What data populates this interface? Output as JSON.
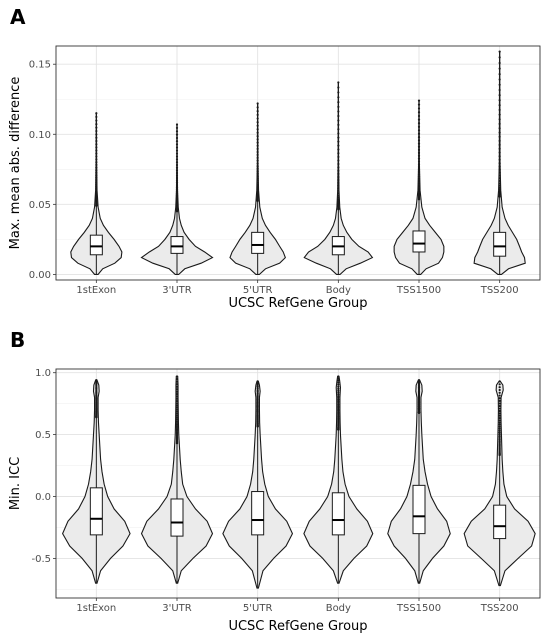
{
  "chart_data": [
    {
      "type": "violin",
      "panel_label": "A",
      "title": "",
      "xlabel": "UCSC RefGene Group",
      "ylabel": "Max. mean abs. difference",
      "categories": [
        "1stExon",
        "3'UTR",
        "5'UTR",
        "Body",
        "TSS1500",
        "TSS200"
      ],
      "yticks": [
        0.0,
        0.05,
        0.1,
        0.15
      ],
      "ytick_labels": [
        "0.00",
        "0.05",
        "0.10",
        "0.15"
      ],
      "ylim": [
        -0.004,
        0.163
      ],
      "grid": true,
      "groups": [
        {
          "category": "1stExon",
          "min": 0.0,
          "q1": 0.014,
          "median": 0.02,
          "q3": 0.028,
          "max": 0.115,
          "violin": [
            [
              0.0,
              0.05
            ],
            [
              0.004,
              0.18
            ],
            [
              0.008,
              0.52
            ],
            [
              0.012,
              0.7
            ],
            [
              0.016,
              0.72
            ],
            [
              0.02,
              0.64
            ],
            [
              0.025,
              0.5
            ],
            [
              0.03,
              0.34
            ],
            [
              0.035,
              0.2
            ],
            [
              0.04,
              0.11
            ],
            [
              0.048,
              0.05
            ],
            [
              0.06,
              0.02
            ],
            [
              0.08,
              0.008
            ],
            [
              0.115,
              0.003
            ]
          ]
        },
        {
          "category": "3'UTR",
          "min": 0.0,
          "q1": 0.015,
          "median": 0.02,
          "q3": 0.027,
          "max": 0.107,
          "violin": [
            [
              0.0,
              0.05
            ],
            [
              0.004,
              0.22
            ],
            [
              0.008,
              0.68
            ],
            [
              0.012,
              1.0
            ],
            [
              0.016,
              0.78
            ],
            [
              0.02,
              0.52
            ],
            [
              0.025,
              0.34
            ],
            [
              0.03,
              0.2
            ],
            [
              0.035,
              0.12
            ],
            [
              0.04,
              0.07
            ],
            [
              0.048,
              0.035
            ],
            [
              0.06,
              0.015
            ],
            [
              0.08,
              0.006
            ],
            [
              0.107,
              0.003
            ]
          ]
        },
        {
          "category": "5'UTR",
          "min": 0.0,
          "q1": 0.015,
          "median": 0.021,
          "q3": 0.03,
          "max": 0.122,
          "violin": [
            [
              0.0,
              0.05
            ],
            [
              0.004,
              0.22
            ],
            [
              0.008,
              0.62
            ],
            [
              0.012,
              0.78
            ],
            [
              0.016,
              0.72
            ],
            [
              0.02,
              0.62
            ],
            [
              0.025,
              0.5
            ],
            [
              0.03,
              0.35
            ],
            [
              0.035,
              0.22
            ],
            [
              0.04,
              0.13
            ],
            [
              0.048,
              0.06
            ],
            [
              0.06,
              0.025
            ],
            [
              0.08,
              0.008
            ],
            [
              0.122,
              0.003
            ]
          ]
        },
        {
          "category": "Body",
          "min": 0.0,
          "q1": 0.014,
          "median": 0.02,
          "q3": 0.027,
          "max": 0.137,
          "violin": [
            [
              0.0,
              0.05
            ],
            [
              0.004,
              0.22
            ],
            [
              0.008,
              0.62
            ],
            [
              0.012,
              0.96
            ],
            [
              0.016,
              0.84
            ],
            [
              0.02,
              0.58
            ],
            [
              0.025,
              0.38
            ],
            [
              0.03,
              0.24
            ],
            [
              0.035,
              0.14
            ],
            [
              0.04,
              0.08
            ],
            [
              0.048,
              0.04
            ],
            [
              0.06,
              0.018
            ],
            [
              0.08,
              0.007
            ],
            [
              0.137,
              0.003
            ]
          ]
        },
        {
          "category": "TSS1500",
          "min": 0.0,
          "q1": 0.016,
          "median": 0.022,
          "q3": 0.031,
          "max": 0.124,
          "violin": [
            [
              0.0,
              0.05
            ],
            [
              0.004,
              0.2
            ],
            [
              0.008,
              0.55
            ],
            [
              0.012,
              0.66
            ],
            [
              0.016,
              0.7
            ],
            [
              0.02,
              0.7
            ],
            [
              0.025,
              0.62
            ],
            [
              0.03,
              0.46
            ],
            [
              0.035,
              0.3
            ],
            [
              0.04,
              0.17
            ],
            [
              0.048,
              0.08
            ],
            [
              0.06,
              0.03
            ],
            [
              0.08,
              0.01
            ],
            [
              0.124,
              0.003
            ]
          ]
        },
        {
          "category": "TSS200",
          "min": 0.0,
          "q1": 0.013,
          "median": 0.02,
          "q3": 0.03,
          "max": 0.159,
          "violin": [
            [
              0.0,
              0.05
            ],
            [
              0.004,
              0.25
            ],
            [
              0.008,
              0.72
            ],
            [
              0.012,
              0.7
            ],
            [
              0.016,
              0.62
            ],
            [
              0.02,
              0.56
            ],
            [
              0.025,
              0.48
            ],
            [
              0.03,
              0.36
            ],
            [
              0.035,
              0.24
            ],
            [
              0.04,
              0.15
            ],
            [
              0.048,
              0.07
            ],
            [
              0.06,
              0.03
            ],
            [
              0.08,
              0.01
            ],
            [
              0.159,
              0.003
            ]
          ]
        }
      ]
    },
    {
      "type": "violin",
      "panel_label": "B",
      "title": "",
      "xlabel": "UCSC RefGene Group",
      "ylabel": "Min. ICC",
      "categories": [
        "1stExon",
        "3'UTR",
        "5'UTR",
        "Body",
        "TSS1500",
        "TSS200"
      ],
      "yticks": [
        -0.5,
        0.0,
        0.5,
        1.0
      ],
      "ytick_labels": [
        "-0.5",
        "0.0",
        "0.5",
        "1.0"
      ],
      "ylim": [
        -0.82,
        1.03
      ],
      "grid": true,
      "groups": [
        {
          "category": "1stExon",
          "min": -0.7,
          "q1": -0.31,
          "median": -0.18,
          "q3": 0.07,
          "max": 0.94,
          "violin": [
            [
              -0.7,
              0.02
            ],
            [
              -0.6,
              0.12
            ],
            [
              -0.5,
              0.4
            ],
            [
              -0.4,
              0.75
            ],
            [
              -0.3,
              0.95
            ],
            [
              -0.2,
              0.8
            ],
            [
              -0.1,
              0.5
            ],
            [
              0.0,
              0.32
            ],
            [
              0.1,
              0.22
            ],
            [
              0.2,
              0.16
            ],
            [
              0.3,
              0.12
            ],
            [
              0.4,
              0.1
            ],
            [
              0.5,
              0.08
            ],
            [
              0.6,
              0.06
            ],
            [
              0.7,
              0.05
            ],
            [
              0.8,
              0.05
            ],
            [
              0.85,
              0.08
            ],
            [
              0.9,
              0.07
            ],
            [
              0.94,
              0.02
            ]
          ]
        },
        {
          "category": "3'UTR",
          "min": -0.7,
          "q1": -0.32,
          "median": -0.21,
          "q3": -0.02,
          "max": 0.97,
          "violin": [
            [
              -0.7,
              0.02
            ],
            [
              -0.6,
              0.12
            ],
            [
              -0.5,
              0.45
            ],
            [
              -0.4,
              0.82
            ],
            [
              -0.3,
              1.0
            ],
            [
              -0.2,
              0.85
            ],
            [
              -0.1,
              0.52
            ],
            [
              0.0,
              0.28
            ],
            [
              0.1,
              0.16
            ],
            [
              0.2,
              0.12
            ],
            [
              0.3,
              0.09
            ],
            [
              0.4,
              0.07
            ],
            [
              0.5,
              0.05
            ],
            [
              0.6,
              0.04
            ],
            [
              0.7,
              0.035
            ],
            [
              0.8,
              0.03
            ],
            [
              0.9,
              0.03
            ],
            [
              0.97,
              0.02
            ]
          ]
        },
        {
          "category": "5'UTR",
          "min": -0.74,
          "q1": -0.31,
          "median": -0.19,
          "q3": 0.04,
          "max": 0.93,
          "violin": [
            [
              -0.74,
              0.02
            ],
            [
              -0.6,
              0.15
            ],
            [
              -0.5,
              0.45
            ],
            [
              -0.4,
              0.8
            ],
            [
              -0.3,
              0.98
            ],
            [
              -0.2,
              0.82
            ],
            [
              -0.1,
              0.5
            ],
            [
              0.0,
              0.3
            ],
            [
              0.1,
              0.2
            ],
            [
              0.2,
              0.14
            ],
            [
              0.3,
              0.11
            ],
            [
              0.4,
              0.09
            ],
            [
              0.5,
              0.07
            ],
            [
              0.6,
              0.055
            ],
            [
              0.7,
              0.05
            ],
            [
              0.8,
              0.05
            ],
            [
              0.85,
              0.07
            ],
            [
              0.9,
              0.05
            ],
            [
              0.93,
              0.02
            ]
          ]
        },
        {
          "category": "Body",
          "min": -0.7,
          "q1": -0.31,
          "median": -0.19,
          "q3": 0.03,
          "max": 0.97,
          "violin": [
            [
              -0.7,
              0.02
            ],
            [
              -0.6,
              0.14
            ],
            [
              -0.5,
              0.44
            ],
            [
              -0.4,
              0.8
            ],
            [
              -0.3,
              0.97
            ],
            [
              -0.2,
              0.82
            ],
            [
              -0.1,
              0.52
            ],
            [
              0.0,
              0.3
            ],
            [
              0.1,
              0.19
            ],
            [
              0.2,
              0.13
            ],
            [
              0.3,
              0.1
            ],
            [
              0.4,
              0.08
            ],
            [
              0.5,
              0.06
            ],
            [
              0.6,
              0.05
            ],
            [
              0.7,
              0.045
            ],
            [
              0.8,
              0.045
            ],
            [
              0.88,
              0.06
            ],
            [
              0.93,
              0.04
            ],
            [
              0.97,
              0.02
            ]
          ]
        },
        {
          "category": "TSS1500",
          "min": -0.7,
          "q1": -0.3,
          "median": -0.16,
          "q3": 0.09,
          "max": 0.94,
          "violin": [
            [
              -0.7,
              0.02
            ],
            [
              -0.6,
              0.12
            ],
            [
              -0.5,
              0.38
            ],
            [
              -0.4,
              0.7
            ],
            [
              -0.3,
              0.88
            ],
            [
              -0.2,
              0.78
            ],
            [
              -0.1,
              0.52
            ],
            [
              0.0,
              0.34
            ],
            [
              0.1,
              0.24
            ],
            [
              0.2,
              0.17
            ],
            [
              0.3,
              0.12
            ],
            [
              0.4,
              0.1
            ],
            [
              0.5,
              0.08
            ],
            [
              0.6,
              0.065
            ],
            [
              0.7,
              0.055
            ],
            [
              0.8,
              0.055
            ],
            [
              0.85,
              0.09
            ],
            [
              0.9,
              0.08
            ],
            [
              0.94,
              0.02
            ]
          ]
        },
        {
          "category": "TSS200",
          "min": -0.72,
          "q1": -0.34,
          "median": -0.24,
          "q3": -0.07,
          "max": 0.93,
          "violin": [
            [
              -0.72,
              0.02
            ],
            [
              -0.6,
              0.15
            ],
            [
              -0.5,
              0.52
            ],
            [
              -0.4,
              0.9
            ],
            [
              -0.3,
              1.0
            ],
            [
              -0.2,
              0.8
            ],
            [
              -0.1,
              0.42
            ],
            [
              0.0,
              0.2
            ],
            [
              0.1,
              0.12
            ],
            [
              0.2,
              0.09
            ],
            [
              0.3,
              0.07
            ],
            [
              0.4,
              0.06
            ],
            [
              0.5,
              0.05
            ],
            [
              0.6,
              0.04
            ],
            [
              0.7,
              0.035
            ],
            [
              0.8,
              0.04
            ],
            [
              0.86,
              0.1
            ],
            [
              0.9,
              0.09
            ],
            [
              0.93,
              0.02
            ]
          ]
        }
      ]
    }
  ]
}
